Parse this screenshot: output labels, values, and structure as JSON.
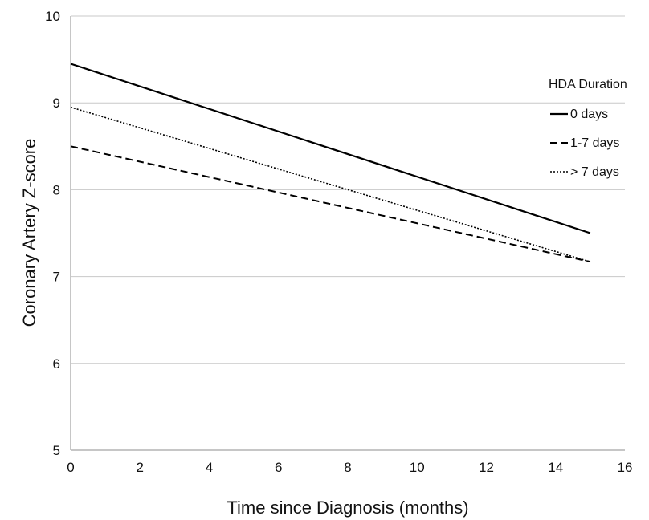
{
  "chart_data": {
    "type": "line",
    "title": "",
    "xlabel": "Time since Diagnosis (months)",
    "ylabel": "Coronary Artery Z-score",
    "xlim": [
      0,
      16
    ],
    "ylim": [
      5,
      10
    ],
    "xticks": [
      "0",
      "2",
      "4",
      "6",
      "8",
      "10",
      "12",
      "14",
      "16"
    ],
    "yticks": [
      "5",
      "6",
      "7",
      "8",
      "9",
      "10"
    ],
    "grid": "horizontal",
    "legend_title": "HDA Duration",
    "legend_position": "right",
    "series": [
      {
        "name": "0 days",
        "style": "solid",
        "color": "#000000",
        "x": [
          0,
          15
        ],
        "y": [
          9.45,
          7.5
        ]
      },
      {
        "name": "1-7 days",
        "style": "dashed",
        "color": "#000000",
        "x": [
          0,
          15
        ],
        "y": [
          8.5,
          7.17
        ]
      },
      {
        "name": "> 7 days",
        "style": "dotted",
        "color": "#000000",
        "x": [
          0,
          15
        ],
        "y": [
          8.95,
          7.17
        ]
      }
    ]
  }
}
